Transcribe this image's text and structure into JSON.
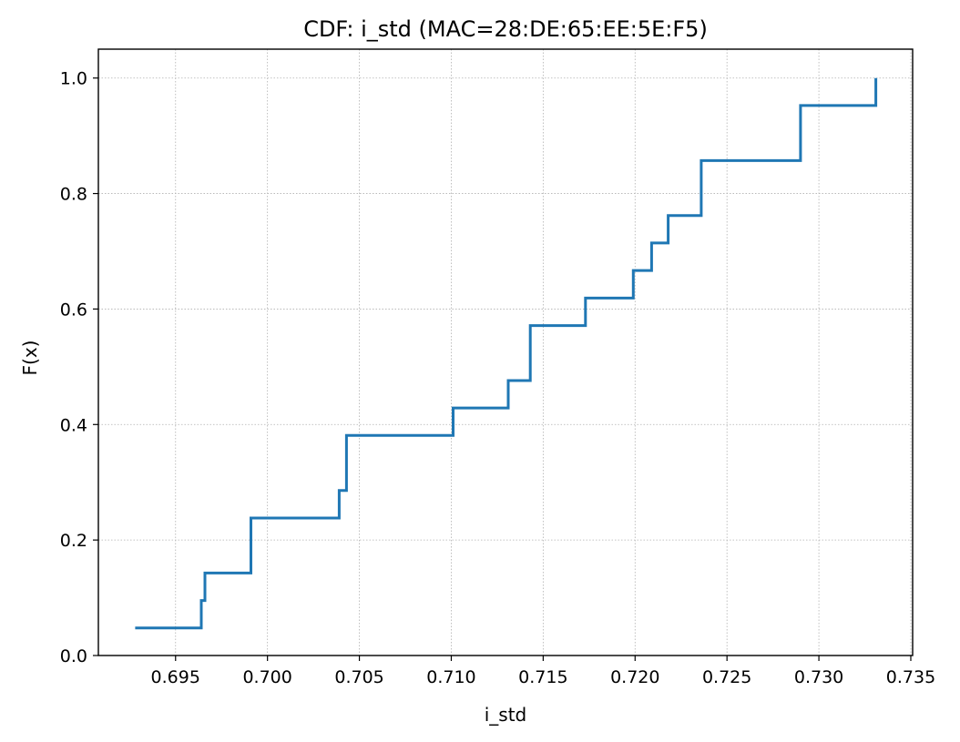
{
  "chart_data": {
    "type": "line",
    "subtype": "step-cdf",
    "title": "CDF: i_std (MAC=28:DE:65:EE:5E:F5)",
    "xlabel": "i_std",
    "ylabel": "F(x)",
    "xlim": [
      0.6908,
      0.7351
    ],
    "ylim": [
      0.0,
      1.05
    ],
    "xticks": [
      0.695,
      0.7,
      0.705,
      0.71,
      0.715,
      0.72,
      0.725,
      0.73,
      0.735
    ],
    "xtick_labels": [
      "0.695",
      "0.700",
      "0.705",
      "0.710",
      "0.715",
      "0.720",
      "0.725",
      "0.730",
      "0.735"
    ],
    "yticks": [
      0.0,
      0.2,
      0.4,
      0.6,
      0.8,
      1.0
    ],
    "ytick_labels": [
      "0.0",
      "0.2",
      "0.4",
      "0.6",
      "0.8",
      "1.0"
    ],
    "grid": true,
    "line_color": "#1f77b4",
    "series": [
      {
        "x": [
          0.6928,
          0.6964,
          0.6966,
          0.6991,
          0.7039,
          0.7043,
          0.7101,
          0.7131,
          0.7143,
          0.7173,
          0.7199,
          0.7209,
          0.7218,
          0.7236,
          0.729,
          0.7331
        ],
        "y": [
          0.0476,
          0.0952,
          0.1429,
          0.2381,
          0.2857,
          0.381,
          0.4286,
          0.4762,
          0.5714,
          0.619,
          0.6667,
          0.7143,
          0.7619,
          0.8571,
          0.9524,
          1.0
        ]
      }
    ]
  }
}
